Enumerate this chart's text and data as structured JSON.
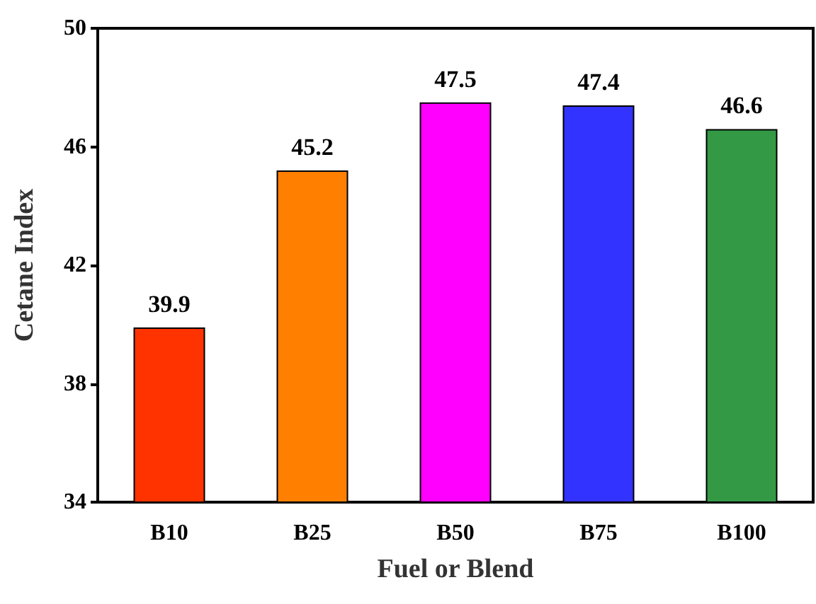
{
  "chart_data": {
    "type": "bar",
    "xlabel": "Fuel or Blend",
    "ylabel": "Cetane Index",
    "categories": [
      "B10",
      "B25",
      "B50",
      "B75",
      "B100"
    ],
    "values": [
      39.9,
      45.2,
      47.5,
      47.4,
      46.6
    ],
    "colors": [
      "#ff3300",
      "#ff8000",
      "#ff00ff",
      "#3333ff",
      "#339944"
    ],
    "ylim": [
      34,
      50
    ],
    "yticks": [
      34,
      38,
      42,
      46,
      50
    ],
    "grid": false,
    "data_labels": true
  }
}
